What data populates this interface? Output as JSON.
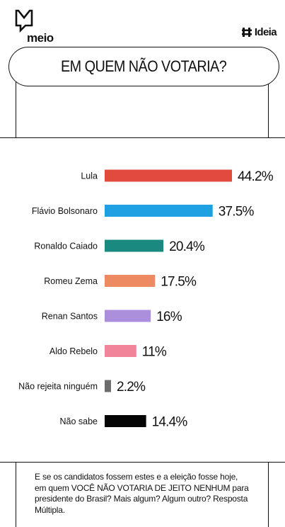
{
  "brand": {
    "left_logo": "meio",
    "right_logo": "Ideia"
  },
  "title": "EM QUEM NÃO VOTARIA?",
  "note": "E se os candidatos fossem estes e a eleição fosse hoje, em quem VOCÊ NÃO VOTARIA DE JEITO NENHUM para presidente do Brasil? Mais algum? Algum outro? Res­posta Múltipla.",
  "chart_data": {
    "type": "bar",
    "orientation": "horizontal",
    "categories": [
      "Lula",
      "Flávio Bolsonaro",
      "Ronaldo Caiado",
      "Romeu Zema",
      "Renan Santos",
      "Aldo Rebelo",
      "Não rejeita ninguém",
      "Não sabe"
    ],
    "values": [
      44.2,
      37.5,
      20.4,
      17.5,
      16,
      11,
      2.2,
      14.4
    ],
    "value_labels": [
      "44.2%",
      "37.5%",
      "20.4%",
      "17.5%",
      "16%",
      "11%",
      "2.2%",
      "14.4%"
    ],
    "colors": [
      "#e14b3d",
      "#1fa0e3",
      "#1a8a80",
      "#ee8a62",
      "#ac8fdc",
      "#f2849a",
      "#6b6b6b",
      "#050505"
    ],
    "xlim": [
      0,
      44.2
    ],
    "grid": false,
    "legend": "none"
  }
}
